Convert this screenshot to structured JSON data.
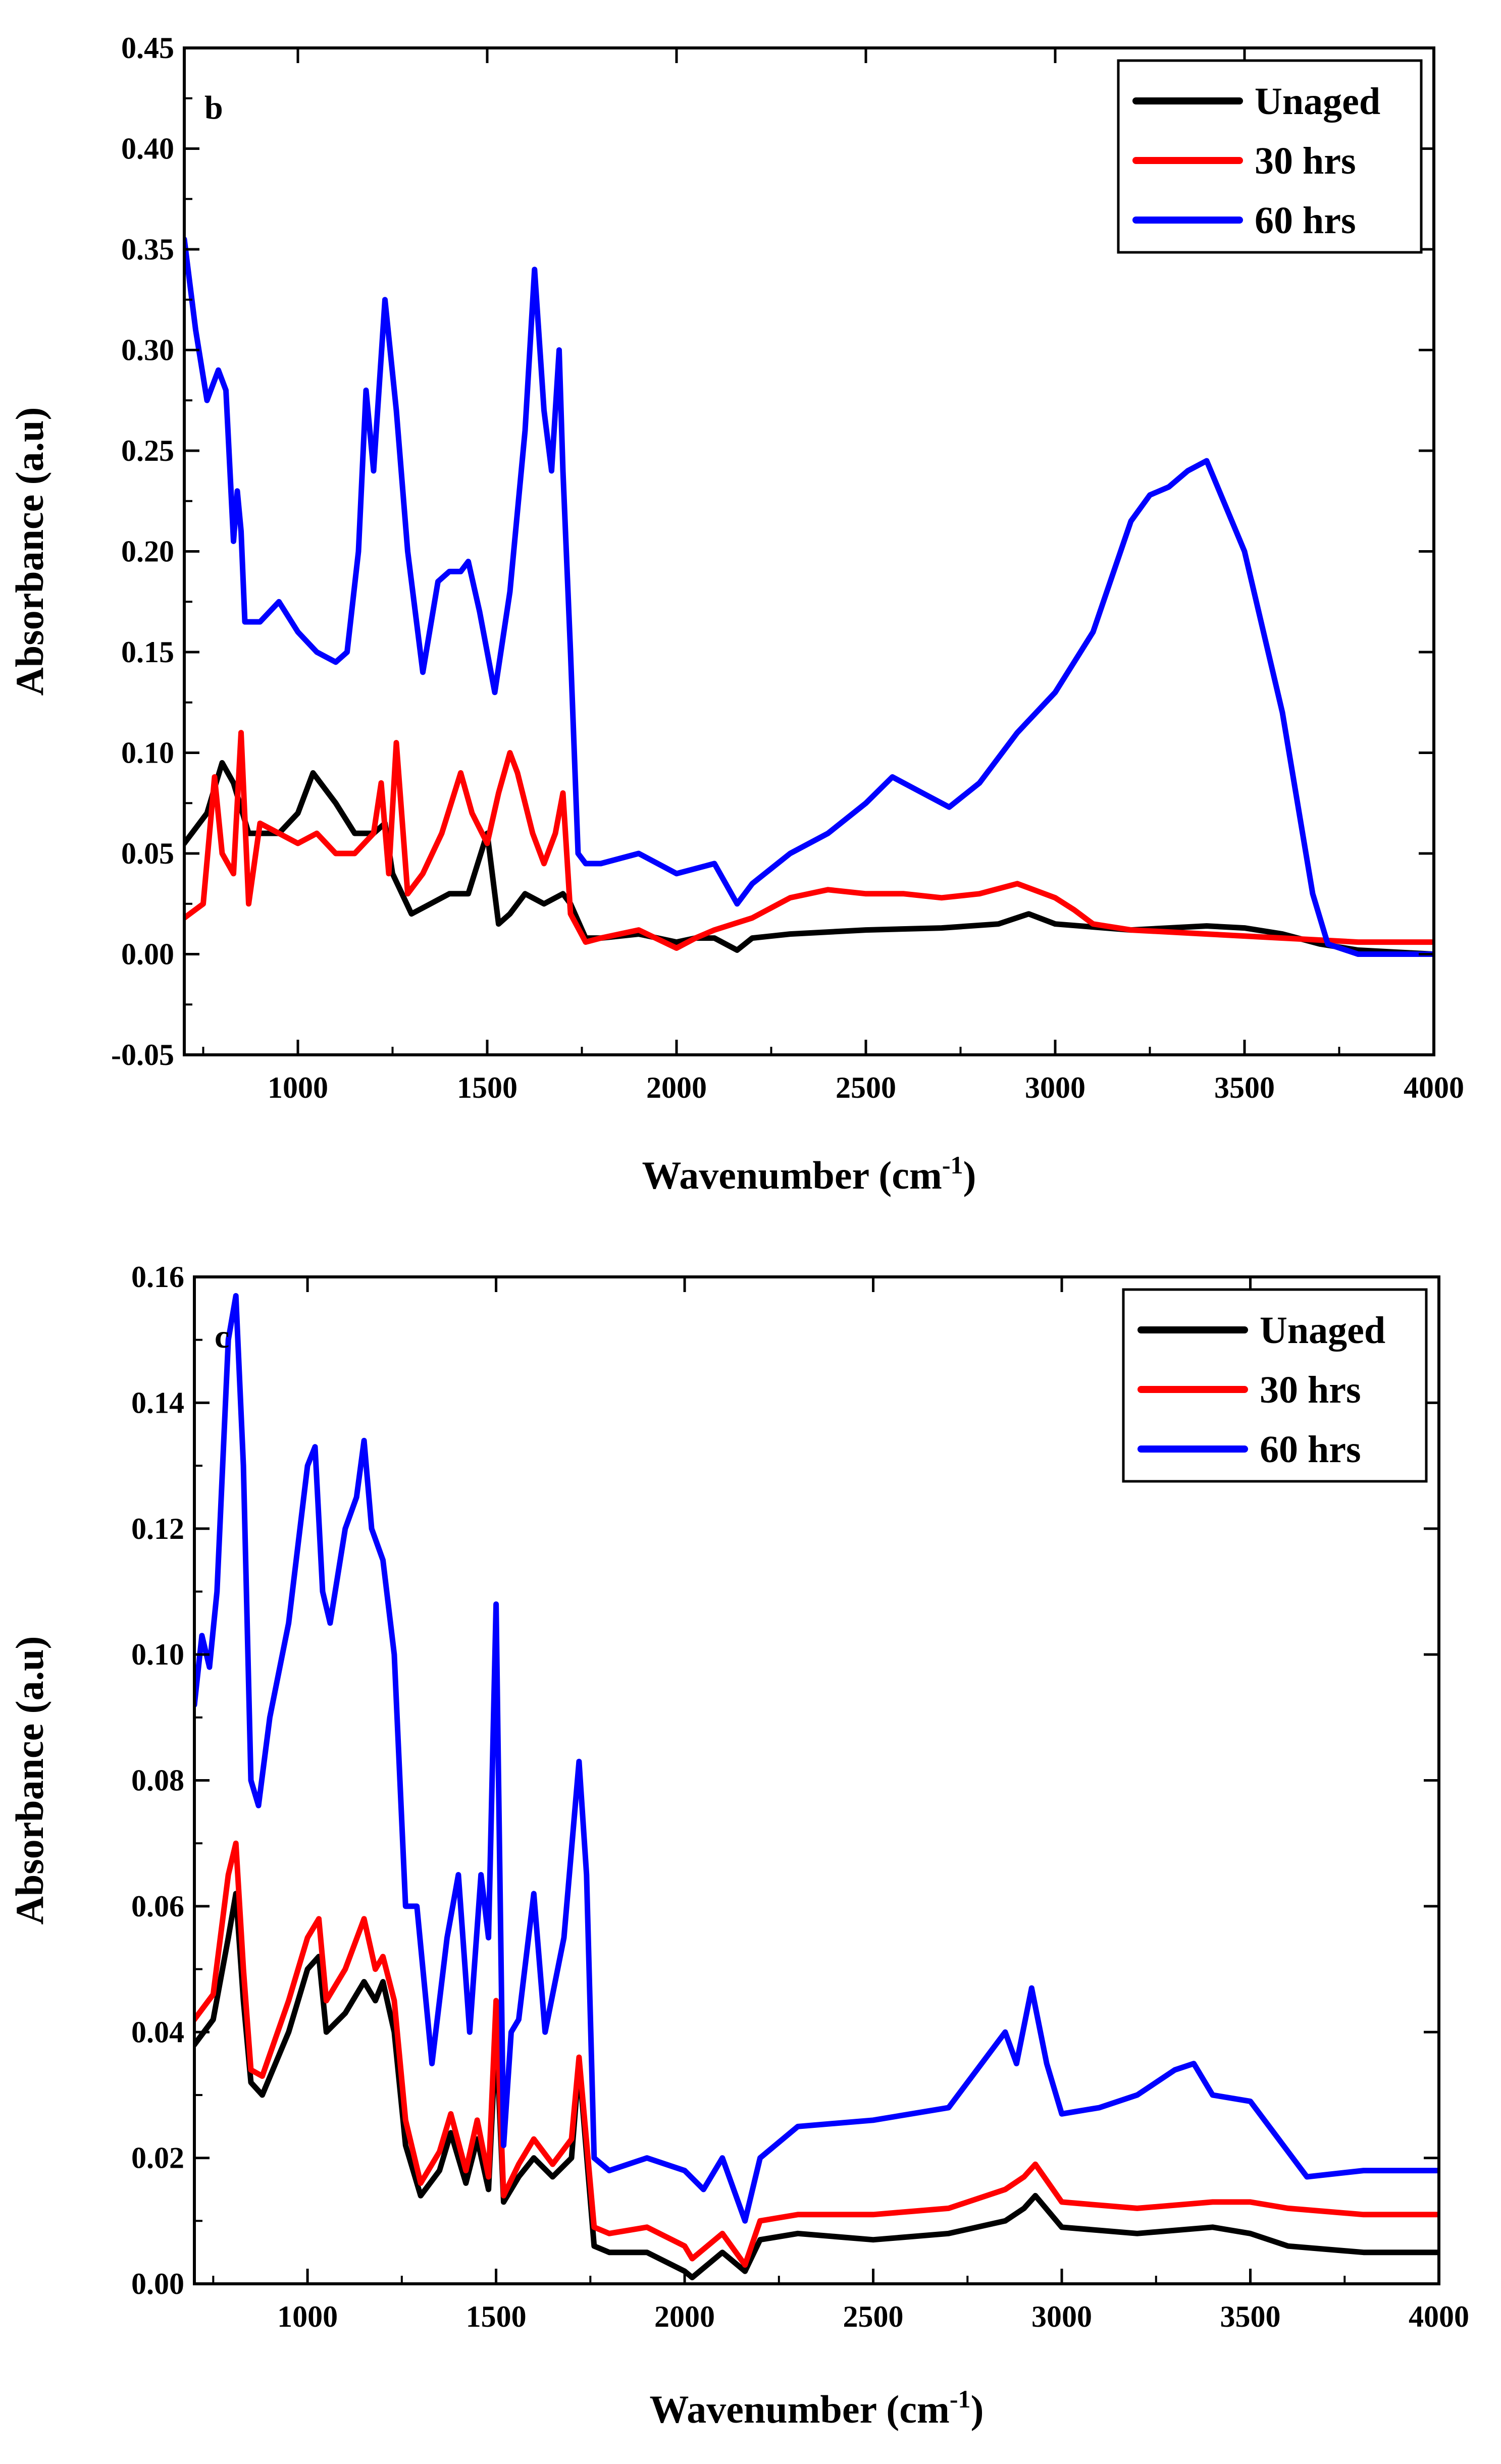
{
  "chart_data": [
    {
      "type": "line",
      "panel_label": "b",
      "title": "",
      "xlabel": "Wavenumber (cm",
      "xlabel_sup": "-1",
      "xlabel_close": ")",
      "ylabel": "Absorbance (a.u)",
      "xlim": [
        700,
        4000
      ],
      "ylim": [
        -0.05,
        0.45
      ],
      "xticks": [
        1000,
        1500,
        2000,
        2500,
        3000,
        3500,
        4000
      ],
      "yticks": [
        -0.05,
        0.0,
        0.05,
        0.1,
        0.15,
        0.2,
        0.25,
        0.3,
        0.35,
        0.4,
        0.45
      ],
      "ytick_labels": [
        "-0.05",
        "0.00",
        "0.05",
        "0.10",
        "0.15",
        "0.20",
        "0.25",
        "0.30",
        "0.35",
        "0.40",
        "0.45"
      ],
      "legend_position": "top-right",
      "series": [
        {
          "name": "Unaged",
          "color": "#000000",
          "x": [
            700,
            760,
            800,
            830,
            870,
            950,
            1000,
            1040,
            1100,
            1150,
            1200,
            1230,
            1250,
            1300,
            1350,
            1400,
            1450,
            1500,
            1530,
            1560,
            1600,
            1650,
            1700,
            1720,
            1760,
            1800,
            1900,
            2000,
            2050,
            2100,
            2160,
            2200,
            2300,
            2500,
            2700,
            2850,
            2930,
            3000,
            3200,
            3400,
            3500,
            3600,
            3700,
            3800,
            4000
          ],
          "values": [
            0.055,
            0.07,
            0.095,
            0.085,
            0.06,
            0.06,
            0.07,
            0.09,
            0.075,
            0.06,
            0.06,
            0.065,
            0.04,
            0.02,
            0.025,
            0.03,
            0.03,
            0.06,
            0.015,
            0.02,
            0.03,
            0.025,
            0.03,
            0.025,
            0.008,
            0.008,
            0.01,
            0.006,
            0.008,
            0.008,
            0.002,
            0.008,
            0.01,
            0.012,
            0.013,
            0.015,
            0.02,
            0.015,
            0.012,
            0.014,
            0.013,
            0.01,
            0.005,
            0.002,
            0.0
          ]
        },
        {
          "name": "30 hrs",
          "color": "#ff0000",
          "x": [
            700,
            750,
            780,
            800,
            830,
            850,
            870,
            900,
            950,
            1000,
            1050,
            1100,
            1150,
            1200,
            1220,
            1240,
            1260,
            1290,
            1330,
            1380,
            1430,
            1460,
            1500,
            1530,
            1560,
            1580,
            1620,
            1650,
            1680,
            1700,
            1720,
            1760,
            1800,
            1900,
            2000,
            2050,
            2100,
            2200,
            2300,
            2400,
            2500,
            2600,
            2700,
            2800,
            2900,
            3000,
            3050,
            3100,
            3200,
            3400,
            3600,
            3800,
            4000
          ],
          "values": [
            0.018,
            0.025,
            0.088,
            0.05,
            0.04,
            0.11,
            0.025,
            0.065,
            0.06,
            0.055,
            0.06,
            0.05,
            0.05,
            0.06,
            0.085,
            0.04,
            0.105,
            0.03,
            0.04,
            0.06,
            0.09,
            0.07,
            0.055,
            0.08,
            0.1,
            0.09,
            0.06,
            0.045,
            0.06,
            0.08,
            0.02,
            0.006,
            0.008,
            0.012,
            0.003,
            0.008,
            0.012,
            0.018,
            0.028,
            0.032,
            0.03,
            0.03,
            0.028,
            0.03,
            0.035,
            0.028,
            0.022,
            0.015,
            0.012,
            0.01,
            0.008,
            0.006,
            0.006
          ]
        },
        {
          "name": "60 hrs",
          "color": "#0000ff",
          "x": [
            700,
            730,
            760,
            790,
            810,
            830,
            840,
            850,
            860,
            870,
            900,
            950,
            1000,
            1050,
            1100,
            1130,
            1160,
            1180,
            1200,
            1230,
            1260,
            1290,
            1330,
            1370,
            1400,
            1430,
            1450,
            1480,
            1520,
            1560,
            1600,
            1625,
            1650,
            1670,
            1690,
            1700,
            1720,
            1740,
            1760,
            1800,
            1900,
            2000,
            2100,
            2160,
            2200,
            2300,
            2400,
            2500,
            2570,
            2650,
            2720,
            2800,
            2900,
            3000,
            3100,
            3200,
            3250,
            3300,
            3350,
            3400,
            3500,
            3600,
            3680,
            3720,
            3800,
            4000
          ],
          "values": [
            0.355,
            0.31,
            0.275,
            0.29,
            0.28,
            0.205,
            0.23,
            0.21,
            0.165,
            0.165,
            0.165,
            0.175,
            0.16,
            0.15,
            0.145,
            0.15,
            0.2,
            0.28,
            0.24,
            0.325,
            0.27,
            0.2,
            0.14,
            0.185,
            0.19,
            0.19,
            0.195,
            0.17,
            0.13,
            0.18,
            0.26,
            0.34,
            0.27,
            0.24,
            0.3,
            0.24,
            0.15,
            0.05,
            0.045,
            0.045,
            0.05,
            0.04,
            0.045,
            0.025,
            0.035,
            0.05,
            0.06,
            0.075,
            0.088,
            0.08,
            0.073,
            0.085,
            0.11,
            0.13,
            0.16,
            0.215,
            0.228,
            0.232,
            0.24,
            0.245,
            0.2,
            0.12,
            0.03,
            0.005,
            0.0,
            0.0
          ]
        }
      ]
    },
    {
      "type": "line",
      "panel_label": "c",
      "title": "",
      "xlabel": "Wavenumber (cm",
      "xlabel_sup": "-1",
      "xlabel_close": ")",
      "ylabel": "Absorbance (a.u)",
      "xlim": [
        700,
        4000
      ],
      "ylim": [
        0.0,
        0.16
      ],
      "xticks": [
        1000,
        1500,
        2000,
        2500,
        3000,
        3500,
        4000
      ],
      "yticks": [
        0.0,
        0.02,
        0.04,
        0.06,
        0.08,
        0.1,
        0.12,
        0.14,
        0.16
      ],
      "ytick_labels": [
        "0.00",
        "0.02",
        "0.04",
        "0.06",
        "0.08",
        "0.10",
        "0.12",
        "0.14",
        "0.16"
      ],
      "legend_position": "top-right",
      "series": [
        {
          "name": "Unaged",
          "color": "#000000",
          "x": [
            700,
            750,
            790,
            810,
            830,
            850,
            880,
            950,
            1000,
            1030,
            1050,
            1100,
            1150,
            1180,
            1200,
            1230,
            1260,
            1300,
            1350,
            1380,
            1420,
            1450,
            1480,
            1500,
            1520,
            1560,
            1600,
            1650,
            1700,
            1720,
            1760,
            1800,
            1900,
            2000,
            2020,
            2100,
            2160,
            2200,
            2300,
            2500,
            2700,
            2850,
            2900,
            2930,
            3000,
            3200,
            3400,
            3500,
            3600,
            3800,
            4000
          ],
          "values": [
            0.038,
            0.042,
            0.055,
            0.062,
            0.045,
            0.032,
            0.03,
            0.04,
            0.05,
            0.052,
            0.04,
            0.043,
            0.048,
            0.045,
            0.048,
            0.04,
            0.022,
            0.014,
            0.018,
            0.024,
            0.016,
            0.023,
            0.015,
            0.04,
            0.013,
            0.017,
            0.02,
            0.017,
            0.02,
            0.035,
            0.006,
            0.005,
            0.005,
            0.002,
            0.001,
            0.005,
            0.002,
            0.007,
            0.008,
            0.007,
            0.008,
            0.01,
            0.012,
            0.014,
            0.009,
            0.008,
            0.009,
            0.008,
            0.006,
            0.005,
            0.005
          ]
        },
        {
          "name": "30 hrs",
          "color": "#ff0000",
          "x": [
            700,
            750,
            790,
            810,
            830,
            850,
            880,
            950,
            1000,
            1030,
            1050,
            1100,
            1150,
            1180,
            1200,
            1230,
            1260,
            1300,
            1350,
            1380,
            1420,
            1450,
            1480,
            1500,
            1520,
            1560,
            1600,
            1650,
            1700,
            1720,
            1760,
            1800,
            1900,
            2000,
            2020,
            2100,
            2160,
            2200,
            2300,
            2500,
            2700,
            2850,
            2900,
            2930,
            3000,
            3200,
            3400,
            3500,
            3600,
            3800,
            4000
          ],
          "values": [
            0.042,
            0.046,
            0.065,
            0.07,
            0.05,
            0.034,
            0.033,
            0.045,
            0.055,
            0.058,
            0.045,
            0.05,
            0.058,
            0.05,
            0.052,
            0.045,
            0.026,
            0.016,
            0.021,
            0.027,
            0.018,
            0.026,
            0.017,
            0.045,
            0.014,
            0.019,
            0.023,
            0.019,
            0.023,
            0.036,
            0.009,
            0.008,
            0.009,
            0.006,
            0.004,
            0.008,
            0.003,
            0.01,
            0.011,
            0.011,
            0.012,
            0.015,
            0.017,
            0.019,
            0.013,
            0.012,
            0.013,
            0.013,
            0.012,
            0.011,
            0.011
          ]
        },
        {
          "name": "60 hrs",
          "color": "#0000ff",
          "x": [
            700,
            720,
            740,
            760,
            790,
            810,
            830,
            850,
            870,
            900,
            950,
            1000,
            1020,
            1040,
            1060,
            1100,
            1130,
            1150,
            1170,
            1200,
            1230,
            1260,
            1290,
            1330,
            1370,
            1400,
            1430,
            1460,
            1480,
            1500,
            1520,
            1540,
            1560,
            1600,
            1630,
            1680,
            1720,
            1740,
            1760,
            1800,
            1900,
            2000,
            2050,
            2100,
            2160,
            2200,
            2300,
            2500,
            2700,
            2850,
            2880,
            2920,
            2960,
            3000,
            3100,
            3200,
            3300,
            3350,
            3400,
            3500,
            3550,
            3650,
            3800,
            4000
          ],
          "values": [
            0.092,
            0.103,
            0.098,
            0.11,
            0.15,
            0.157,
            0.13,
            0.08,
            0.076,
            0.09,
            0.105,
            0.13,
            0.133,
            0.11,
            0.105,
            0.12,
            0.125,
            0.134,
            0.12,
            0.115,
            0.1,
            0.06,
            0.06,
            0.035,
            0.055,
            0.065,
            0.04,
            0.065,
            0.055,
            0.108,
            0.022,
            0.04,
            0.042,
            0.062,
            0.04,
            0.055,
            0.083,
            0.065,
            0.02,
            0.018,
            0.02,
            0.018,
            0.015,
            0.02,
            0.01,
            0.02,
            0.025,
            0.026,
            0.028,
            0.04,
            0.035,
            0.047,
            0.035,
            0.027,
            0.028,
            0.03,
            0.034,
            0.035,
            0.03,
            0.029,
            0.025,
            0.017,
            0.018,
            0.018
          ]
        }
      ]
    }
  ]
}
